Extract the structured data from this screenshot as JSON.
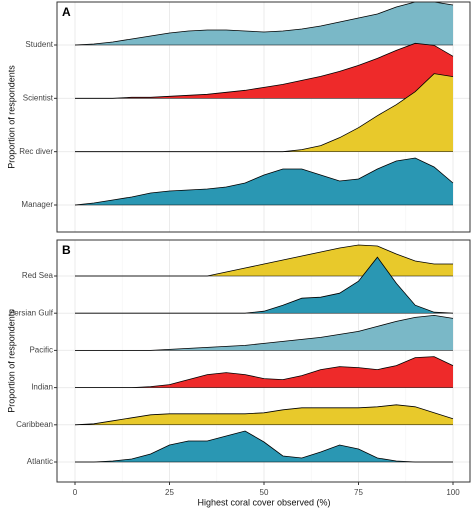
{
  "chart_data": [
    {
      "type": "ridgeline",
      "panel_label": "A",
      "y_label": "Proportion of respondents",
      "x": [
        0,
        5,
        10,
        15,
        20,
        25,
        30,
        35,
        40,
        45,
        50,
        55,
        60,
        65,
        70,
        75,
        80,
        85,
        90,
        95,
        100
      ],
      "xlim": [
        0,
        100
      ],
      "xticks": [
        0,
        25,
        50,
        75,
        100
      ],
      "grid": true,
      "categories": [
        "Student",
        "Scientist",
        "Rec diver",
        "Manager"
      ],
      "series": [
        {
          "name": "Student",
          "color": "#7ab8c7",
          "values": [
            0,
            1,
            3,
            6,
            9,
            12,
            14,
            15,
            15,
            14,
            13,
            14,
            16,
            19,
            23,
            27,
            31,
            38,
            43,
            43,
            40
          ]
        },
        {
          "name": "Scientist",
          "color": "#ee2a2a",
          "values": [
            0,
            0,
            0,
            1,
            1,
            2,
            3,
            4,
            6,
            8,
            11,
            14,
            18,
            22,
            27,
            33,
            40,
            48,
            55,
            53,
            42
          ]
        },
        {
          "name": "Rec diver",
          "color": "#e8c92b",
          "values": [
            0,
            0,
            0,
            0,
            0,
            0,
            0,
            0,
            0,
            0,
            0,
            0,
            2,
            6,
            14,
            24,
            36,
            47,
            60,
            78,
            75
          ]
        },
        {
          "name": "Manager",
          "color": "#2a97b3",
          "values": [
            0,
            2,
            5,
            8,
            12,
            14,
            15,
            16,
            18,
            22,
            30,
            36,
            36,
            30,
            24,
            26,
            36,
            44,
            47,
            38,
            22
          ]
        }
      ]
    },
    {
      "type": "ridgeline",
      "panel_label": "B",
      "y_label": "Proportion of respondents",
      "x_label": "Highest coral cover observed (%)",
      "x": [
        0,
        5,
        10,
        15,
        20,
        25,
        30,
        35,
        40,
        45,
        50,
        55,
        60,
        65,
        70,
        75,
        80,
        85,
        90,
        95,
        100
      ],
      "xlim": [
        0,
        100
      ],
      "xticks": [
        0,
        25,
        50,
        75,
        100
      ],
      "grid": true,
      "categories": [
        "Red Sea",
        "Persian Gulf",
        "Pacific",
        "Indian",
        "Caribbean",
        "Atlantic"
      ],
      "series": [
        {
          "name": "Red Sea",
          "color": "#e8c92b",
          "values": [
            0,
            0,
            0,
            0,
            0,
            0,
            0,
            0,
            4,
            8,
            12,
            16,
            20,
            24,
            28,
            31,
            30,
            22,
            15,
            12,
            12
          ]
        },
        {
          "name": "Persian Gulf",
          "color": "#2a97b3",
          "values": [
            0,
            0,
            0,
            0,
            0,
            0,
            0,
            0,
            0,
            0,
            2,
            8,
            15,
            16,
            20,
            32,
            56,
            30,
            8,
            1,
            0
          ]
        },
        {
          "name": "Pacific",
          "color": "#7ab8c7",
          "values": [
            0,
            0,
            0,
            0,
            0,
            1,
            2,
            3,
            4,
            5,
            7,
            9,
            11,
            13,
            16,
            19,
            24,
            29,
            33,
            35,
            32
          ]
        },
        {
          "name": "Indian",
          "color": "#ee2a2a",
          "values": [
            0,
            0,
            0,
            0,
            1,
            3,
            8,
            13,
            15,
            13,
            9,
            8,
            12,
            18,
            21,
            20,
            18,
            22,
            30,
            31,
            22
          ]
        },
        {
          "name": "Caribbean",
          "color": "#e8c92b",
          "values": [
            0,
            1,
            4,
            7,
            10,
            11,
            11,
            11,
            11,
            11,
            12,
            15,
            17,
            17,
            17,
            17,
            18,
            20,
            18,
            12,
            6
          ]
        },
        {
          "name": "Atlantic",
          "color": "#2a97b3",
          "values": [
            0,
            0,
            1,
            3,
            8,
            17,
            21,
            21,
            26,
            31,
            20,
            6,
            4,
            10,
            17,
            13,
            4,
            1,
            0,
            0,
            0
          ]
        }
      ]
    }
  ]
}
